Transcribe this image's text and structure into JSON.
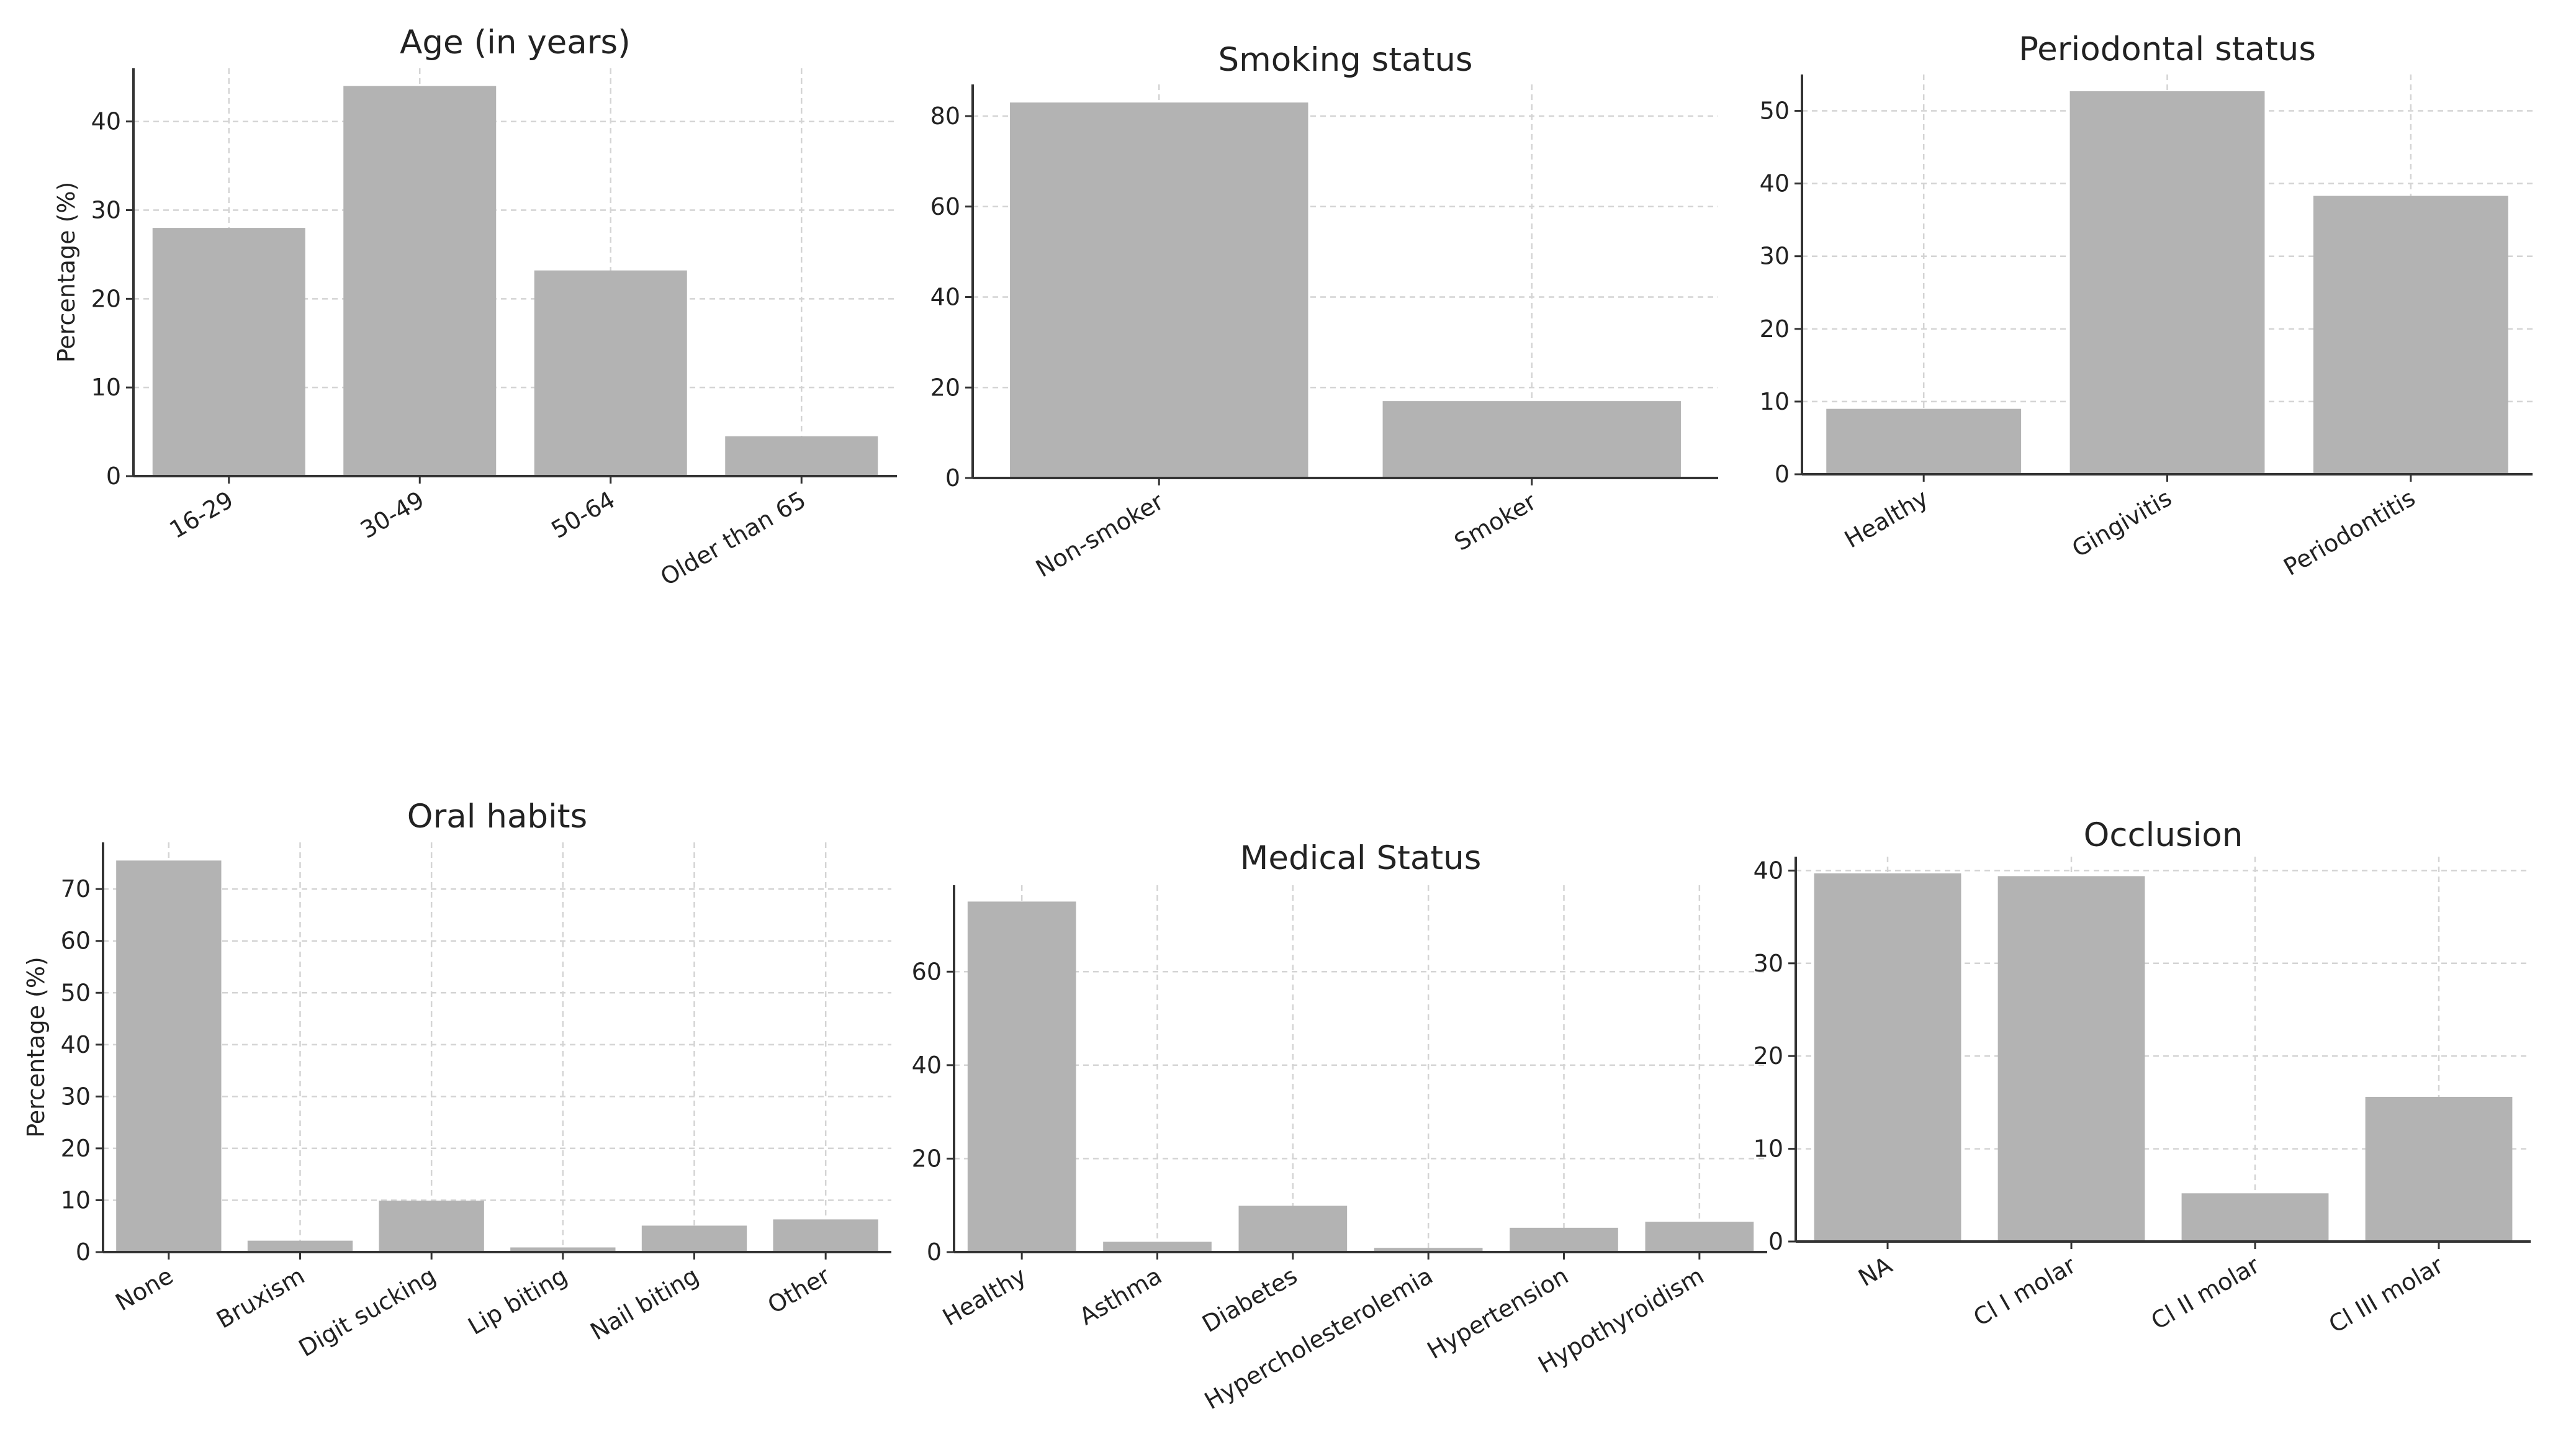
{
  "colors": {
    "bar": "#b3b3b3",
    "text": "#222222",
    "grid": "#d4d4d4",
    "axis": "#333333"
  },
  "chart_data": [
    {
      "type": "bar",
      "title": "Age (in years)",
      "ylabel": "Percentage (%)",
      "xlabel": "",
      "categories": [
        "16-29",
        "30-49",
        "50-64",
        "Older than 65"
      ],
      "values": [
        28,
        44,
        23.2,
        4.5
      ],
      "ylim": [
        0,
        46
      ],
      "yticks": [
        0,
        10,
        20,
        30,
        40
      ],
      "grid": true
    },
    {
      "type": "bar",
      "title": "Smoking status",
      "ylabel": "",
      "xlabel": "",
      "categories": [
        "Non-smoker",
        "Smoker"
      ],
      "values": [
        83,
        17
      ],
      "ylim": [
        0,
        87
      ],
      "yticks": [
        0,
        20,
        40,
        60,
        80
      ],
      "grid": true
    },
    {
      "type": "bar",
      "title": "Periodontal status",
      "ylabel": "",
      "xlabel": "",
      "categories": [
        "Healthy",
        "Gingivitis",
        "Periodontitis"
      ],
      "values": [
        9,
        52.7,
        38.3
      ],
      "ylim": [
        0,
        55
      ],
      "yticks": [
        0,
        10,
        20,
        30,
        40,
        50
      ],
      "grid": true
    },
    {
      "type": "bar",
      "title": "Oral habits",
      "ylabel": "Percentage (%)",
      "xlabel": "",
      "categories": [
        "None",
        "Bruxism",
        "Digit sucking",
        "Lip biting",
        "Nail biting",
        "Other"
      ],
      "values": [
        75.5,
        2.2,
        9.9,
        0.9,
        5.1,
        6.3
      ],
      "ylim": [
        0,
        79
      ],
      "yticks": [
        0,
        10,
        20,
        30,
        40,
        50,
        60,
        70
      ],
      "grid": true
    },
    {
      "type": "bar",
      "title": "Medical Status",
      "ylabel": "",
      "xlabel": "",
      "categories": [
        "Healthy",
        "Asthma",
        "Diabetes",
        "Hypercholesterolemia",
        "Hypertension",
        "Hypothyroidism"
      ],
      "values": [
        75,
        2.2,
        9.9,
        0.9,
        5.2,
        6.5
      ],
      "ylim": [
        0,
        78.5
      ],
      "yticks": [
        0,
        20,
        40,
        60
      ],
      "grid": true
    },
    {
      "type": "bar",
      "title": "Occlusion",
      "ylabel": "",
      "xlabel": "",
      "categories": [
        "NA",
        "Cl I molar",
        "Cl II molar",
        "Cl III molar"
      ],
      "values": [
        39.7,
        39.4,
        5.2,
        15.6
      ],
      "ylim": [
        0,
        41.5
      ],
      "yticks": [
        0,
        10,
        20,
        30,
        40
      ],
      "grid": true
    }
  ]
}
